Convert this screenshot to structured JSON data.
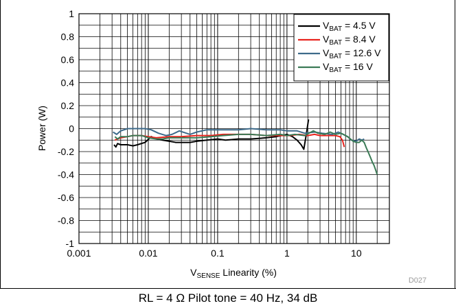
{
  "chart_data": {
    "type": "line",
    "title": "",
    "xlabel": {
      "main": "V",
      "sub": "SENSE",
      "rest": " Linearity (%)"
    },
    "ylabel": "Power (W)",
    "xscale": "log",
    "xlim": [
      0.001,
      30
    ],
    "ylim": [
      -1,
      1
    ],
    "grid": true,
    "legend_position": "top-right",
    "x_ticks": [
      "0.001",
      "0.01",
      "0.1",
      "1",
      "10"
    ],
    "y_ticks": [
      "1",
      "0.8",
      "0.6",
      "0.4",
      "0.2",
      "0",
      "-0.2",
      "-0.4",
      "-0.6",
      "-0.8",
      "-1"
    ],
    "figure_id": "D027",
    "series": [
      {
        "legend_main": "V",
        "legend_sub": "BAT",
        "legend_rest": " = 4.5 V",
        "color": "#000000",
        "points": [
          [
            0.0032,
            -0.14
          ],
          [
            0.0034,
            -0.16
          ],
          [
            0.0036,
            -0.13
          ],
          [
            0.004,
            -0.14
          ],
          [
            0.005,
            -0.14
          ],
          [
            0.006,
            -0.15
          ],
          [
            0.007,
            -0.14
          ],
          [
            0.009,
            -0.12
          ],
          [
            0.011,
            -0.07
          ],
          [
            0.013,
            -0.09
          ],
          [
            0.016,
            -0.1
          ],
          [
            0.02,
            -0.11
          ],
          [
            0.025,
            -0.12
          ],
          [
            0.03,
            -0.12
          ],
          [
            0.04,
            -0.12
          ],
          [
            0.05,
            -0.11
          ],
          [
            0.07,
            -0.1
          ],
          [
            0.1,
            -0.09
          ],
          [
            0.13,
            -0.1
          ],
          [
            0.2,
            -0.09
          ],
          [
            0.3,
            -0.09
          ],
          [
            0.5,
            -0.08
          ],
          [
            0.7,
            -0.07
          ],
          [
            1.0,
            -0.05
          ],
          [
            1.2,
            -0.07
          ],
          [
            1.4,
            -0.1
          ],
          [
            1.6,
            -0.14
          ],
          [
            1.75,
            -0.18
          ],
          [
            1.9,
            -0.05
          ],
          [
            2.05,
            0.08
          ]
        ]
      },
      {
        "legend_main": "V",
        "legend_sub": "BAT",
        "legend_rest": " = 8.4 V",
        "color": "#e8231d",
        "points": [
          [
            0.0033,
            -0.1
          ],
          [
            0.0036,
            -0.09
          ],
          [
            0.004,
            -0.08
          ],
          [
            0.005,
            -0.07
          ],
          [
            0.006,
            -0.06
          ],
          [
            0.008,
            -0.06
          ],
          [
            0.01,
            -0.07
          ],
          [
            0.013,
            -0.08
          ],
          [
            0.02,
            -0.07
          ],
          [
            0.03,
            -0.07
          ],
          [
            0.05,
            -0.06
          ],
          [
            0.08,
            -0.06
          ],
          [
            0.12,
            -0.05
          ],
          [
            0.2,
            -0.05
          ],
          [
            0.3,
            -0.05
          ],
          [
            0.5,
            -0.06
          ],
          [
            0.8,
            -0.06
          ],
          [
            1.1,
            -0.06
          ],
          [
            1.5,
            -0.05
          ],
          [
            2.0,
            -0.06
          ],
          [
            2.5,
            -0.05
          ],
          [
            3.0,
            -0.06
          ],
          [
            4.0,
            -0.06
          ],
          [
            5.0,
            -0.06
          ],
          [
            5.8,
            -0.07
          ],
          [
            6.3,
            -0.1
          ],
          [
            6.7,
            -0.16
          ]
        ]
      },
      {
        "legend_main": "V",
        "legend_sub": "BAT",
        "legend_rest": " = 12.6 V",
        "color": "#3d6a8a",
        "points": [
          [
            0.0031,
            -0.03
          ],
          [
            0.0035,
            -0.05
          ],
          [
            0.004,
            -0.02
          ],
          [
            0.005,
            0.0
          ],
          [
            0.007,
            0.0
          ],
          [
            0.009,
            0.0
          ],
          [
            0.011,
            -0.01
          ],
          [
            0.014,
            -0.04
          ],
          [
            0.018,
            -0.06
          ],
          [
            0.022,
            -0.05
          ],
          [
            0.028,
            -0.02
          ],
          [
            0.04,
            -0.05
          ],
          [
            0.05,
            -0.03
          ],
          [
            0.07,
            -0.01
          ],
          [
            0.1,
            -0.01
          ],
          [
            0.2,
            -0.01
          ],
          [
            0.3,
            0.0
          ],
          [
            0.5,
            -0.01
          ],
          [
            0.8,
            -0.01
          ],
          [
            1.0,
            -0.02
          ],
          [
            1.4,
            -0.02
          ],
          [
            1.8,
            -0.04
          ],
          [
            2.5,
            -0.03
          ],
          [
            3.2,
            -0.04
          ],
          [
            4.5,
            -0.05
          ],
          [
            5.5,
            -0.03
          ],
          [
            6.5,
            -0.05
          ],
          [
            7.5,
            -0.07
          ],
          [
            8.5,
            -0.1
          ],
          [
            10,
            -0.11
          ],
          [
            11,
            -0.09
          ],
          [
            12,
            -0.1
          ],
          [
            13,
            -0.09
          ]
        ]
      },
      {
        "legend_main": "V",
        "legend_sub": "BAT",
        "legend_rest": " = 16 V",
        "color": "#3a7a55",
        "points": [
          [
            0.0033,
            -0.07
          ],
          [
            0.0036,
            -0.09
          ],
          [
            0.004,
            -0.07
          ],
          [
            0.005,
            -0.07
          ],
          [
            0.006,
            -0.06
          ],
          [
            0.008,
            -0.06
          ],
          [
            0.01,
            -0.08
          ],
          [
            0.013,
            -0.09
          ],
          [
            0.016,
            -0.09
          ],
          [
            0.02,
            -0.08
          ],
          [
            0.03,
            -0.08
          ],
          [
            0.05,
            -0.08
          ],
          [
            0.08,
            -0.07
          ],
          [
            0.12,
            -0.06
          ],
          [
            0.2,
            -0.05
          ],
          [
            0.3,
            -0.05
          ],
          [
            0.5,
            -0.06
          ],
          [
            0.8,
            -0.05
          ],
          [
            1.0,
            -0.06
          ],
          [
            1.3,
            -0.05
          ],
          [
            1.8,
            -0.06
          ],
          [
            2.4,
            -0.02
          ],
          [
            2.8,
            -0.04
          ],
          [
            3.5,
            -0.05
          ],
          [
            4.2,
            -0.03
          ],
          [
            5.0,
            -0.05
          ],
          [
            6.0,
            -0.04
          ],
          [
            7.5,
            -0.07
          ],
          [
            9.0,
            -0.11
          ],
          [
            10,
            -0.12
          ],
          [
            11,
            -0.12
          ],
          [
            12,
            -0.1
          ],
          [
            13,
            -0.12
          ],
          [
            14,
            -0.17
          ],
          [
            15,
            -0.21
          ],
          [
            16,
            -0.25
          ],
          [
            17,
            -0.29
          ],
          [
            18,
            -0.32
          ],
          [
            19,
            -0.36
          ],
          [
            20,
            -0.4
          ]
        ]
      }
    ]
  },
  "caption": "RL = 4 Ω   Pilot tone = 40 Hz, 34 dB"
}
